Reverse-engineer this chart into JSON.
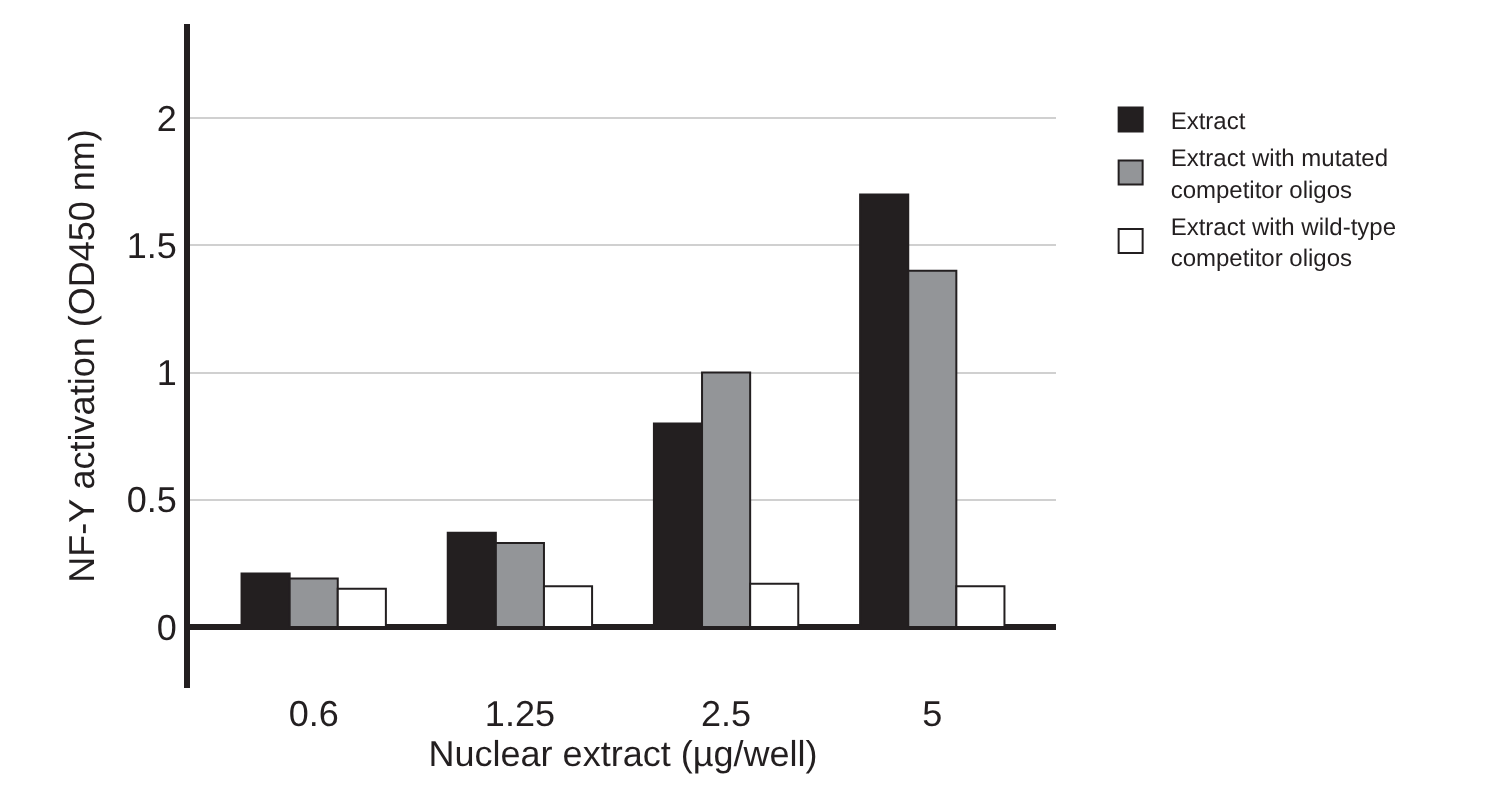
{
  "chart_data": {
    "type": "bar",
    "xlabel": "Nuclear extract (µg/well)",
    "ylabel": "NF-Y activation (OD450 nm)",
    "categories": [
      "0.6",
      "1.25",
      "2.5",
      "5"
    ],
    "series": [
      {
        "name": "Extract",
        "color": "#231f20",
        "values": [
          0.21,
          0.37,
          0.8,
          1.7
        ]
      },
      {
        "name": "Extract with mutated competitor oligos",
        "color": "#939598",
        "values": [
          0.19,
          0.33,
          1.0,
          1.4
        ]
      },
      {
        "name": "Extract with wild-type competitor oligos",
        "color": "#ffffff",
        "values": [
          0.15,
          0.16,
          0.17,
          0.16
        ]
      }
    ],
    "ylim": [
      -0.24,
      2.37
    ],
    "yticks": [
      0,
      0.5,
      1,
      1.5,
      2
    ],
    "grid": "y",
    "legend": "right"
  }
}
